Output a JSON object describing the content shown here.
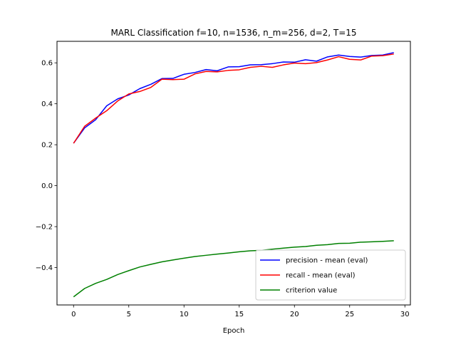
{
  "chart_data": {
    "type": "line",
    "title": "MARL Classification f=10, n=1536, n_m=256, d=2, T=15",
    "xlabel": "Epoch",
    "ylabel": "",
    "xlim": [
      -1.5,
      30.5
    ],
    "ylim": [
      -0.5825,
      0.705
    ],
    "xticks": [
      0,
      5,
      10,
      15,
      20,
      25,
      30
    ],
    "yticks": [
      -0.4,
      -0.2,
      0.0,
      0.2,
      0.4,
      0.6
    ],
    "ytick_labels": [
      "−0.4",
      "−0.2",
      "0.0",
      "0.2",
      "0.4",
      "0.6"
    ],
    "grid": false,
    "legend_position": "lower right",
    "x": [
      0,
      1,
      2,
      3,
      4,
      5,
      6,
      7,
      8,
      9,
      10,
      11,
      12,
      13,
      14,
      15,
      16,
      17,
      18,
      19,
      20,
      21,
      22,
      23,
      24,
      25,
      26,
      27,
      28,
      29
    ],
    "series": [
      {
        "name": "precision - mean (eval)",
        "color": "#0000ff",
        "values": [
          0.207,
          0.282,
          0.322,
          0.39,
          0.424,
          0.443,
          0.474,
          0.495,
          0.523,
          0.524,
          0.544,
          0.553,
          0.567,
          0.561,
          0.58,
          0.581,
          0.59,
          0.591,
          0.596,
          0.604,
          0.603,
          0.615,
          0.608,
          0.629,
          0.638,
          0.631,
          0.628,
          0.636,
          0.638,
          0.65
        ]
      },
      {
        "name": "recall - mean (eval)",
        "color": "#ff0000",
        "values": [
          0.207,
          0.29,
          0.33,
          0.366,
          0.414,
          0.448,
          0.46,
          0.48,
          0.52,
          0.518,
          0.52,
          0.546,
          0.558,
          0.556,
          0.563,
          0.566,
          0.578,
          0.583,
          0.578,
          0.59,
          0.599,
          0.596,
          0.601,
          0.614,
          0.63,
          0.617,
          0.614,
          0.633,
          0.635,
          0.643
        ]
      },
      {
        "name": "criterion value",
        "color": "#008000",
        "values": [
          -0.543,
          -0.502,
          -0.477,
          -0.458,
          -0.434,
          -0.415,
          -0.397,
          -0.384,
          -0.372,
          -0.363,
          -0.354,
          -0.346,
          -0.34,
          -0.334,
          -0.329,
          -0.323,
          -0.318,
          -0.316,
          -0.31,
          -0.305,
          -0.3,
          -0.297,
          -0.291,
          -0.288,
          -0.282,
          -0.281,
          -0.276,
          -0.274,
          -0.272,
          -0.269
        ]
      }
    ]
  }
}
